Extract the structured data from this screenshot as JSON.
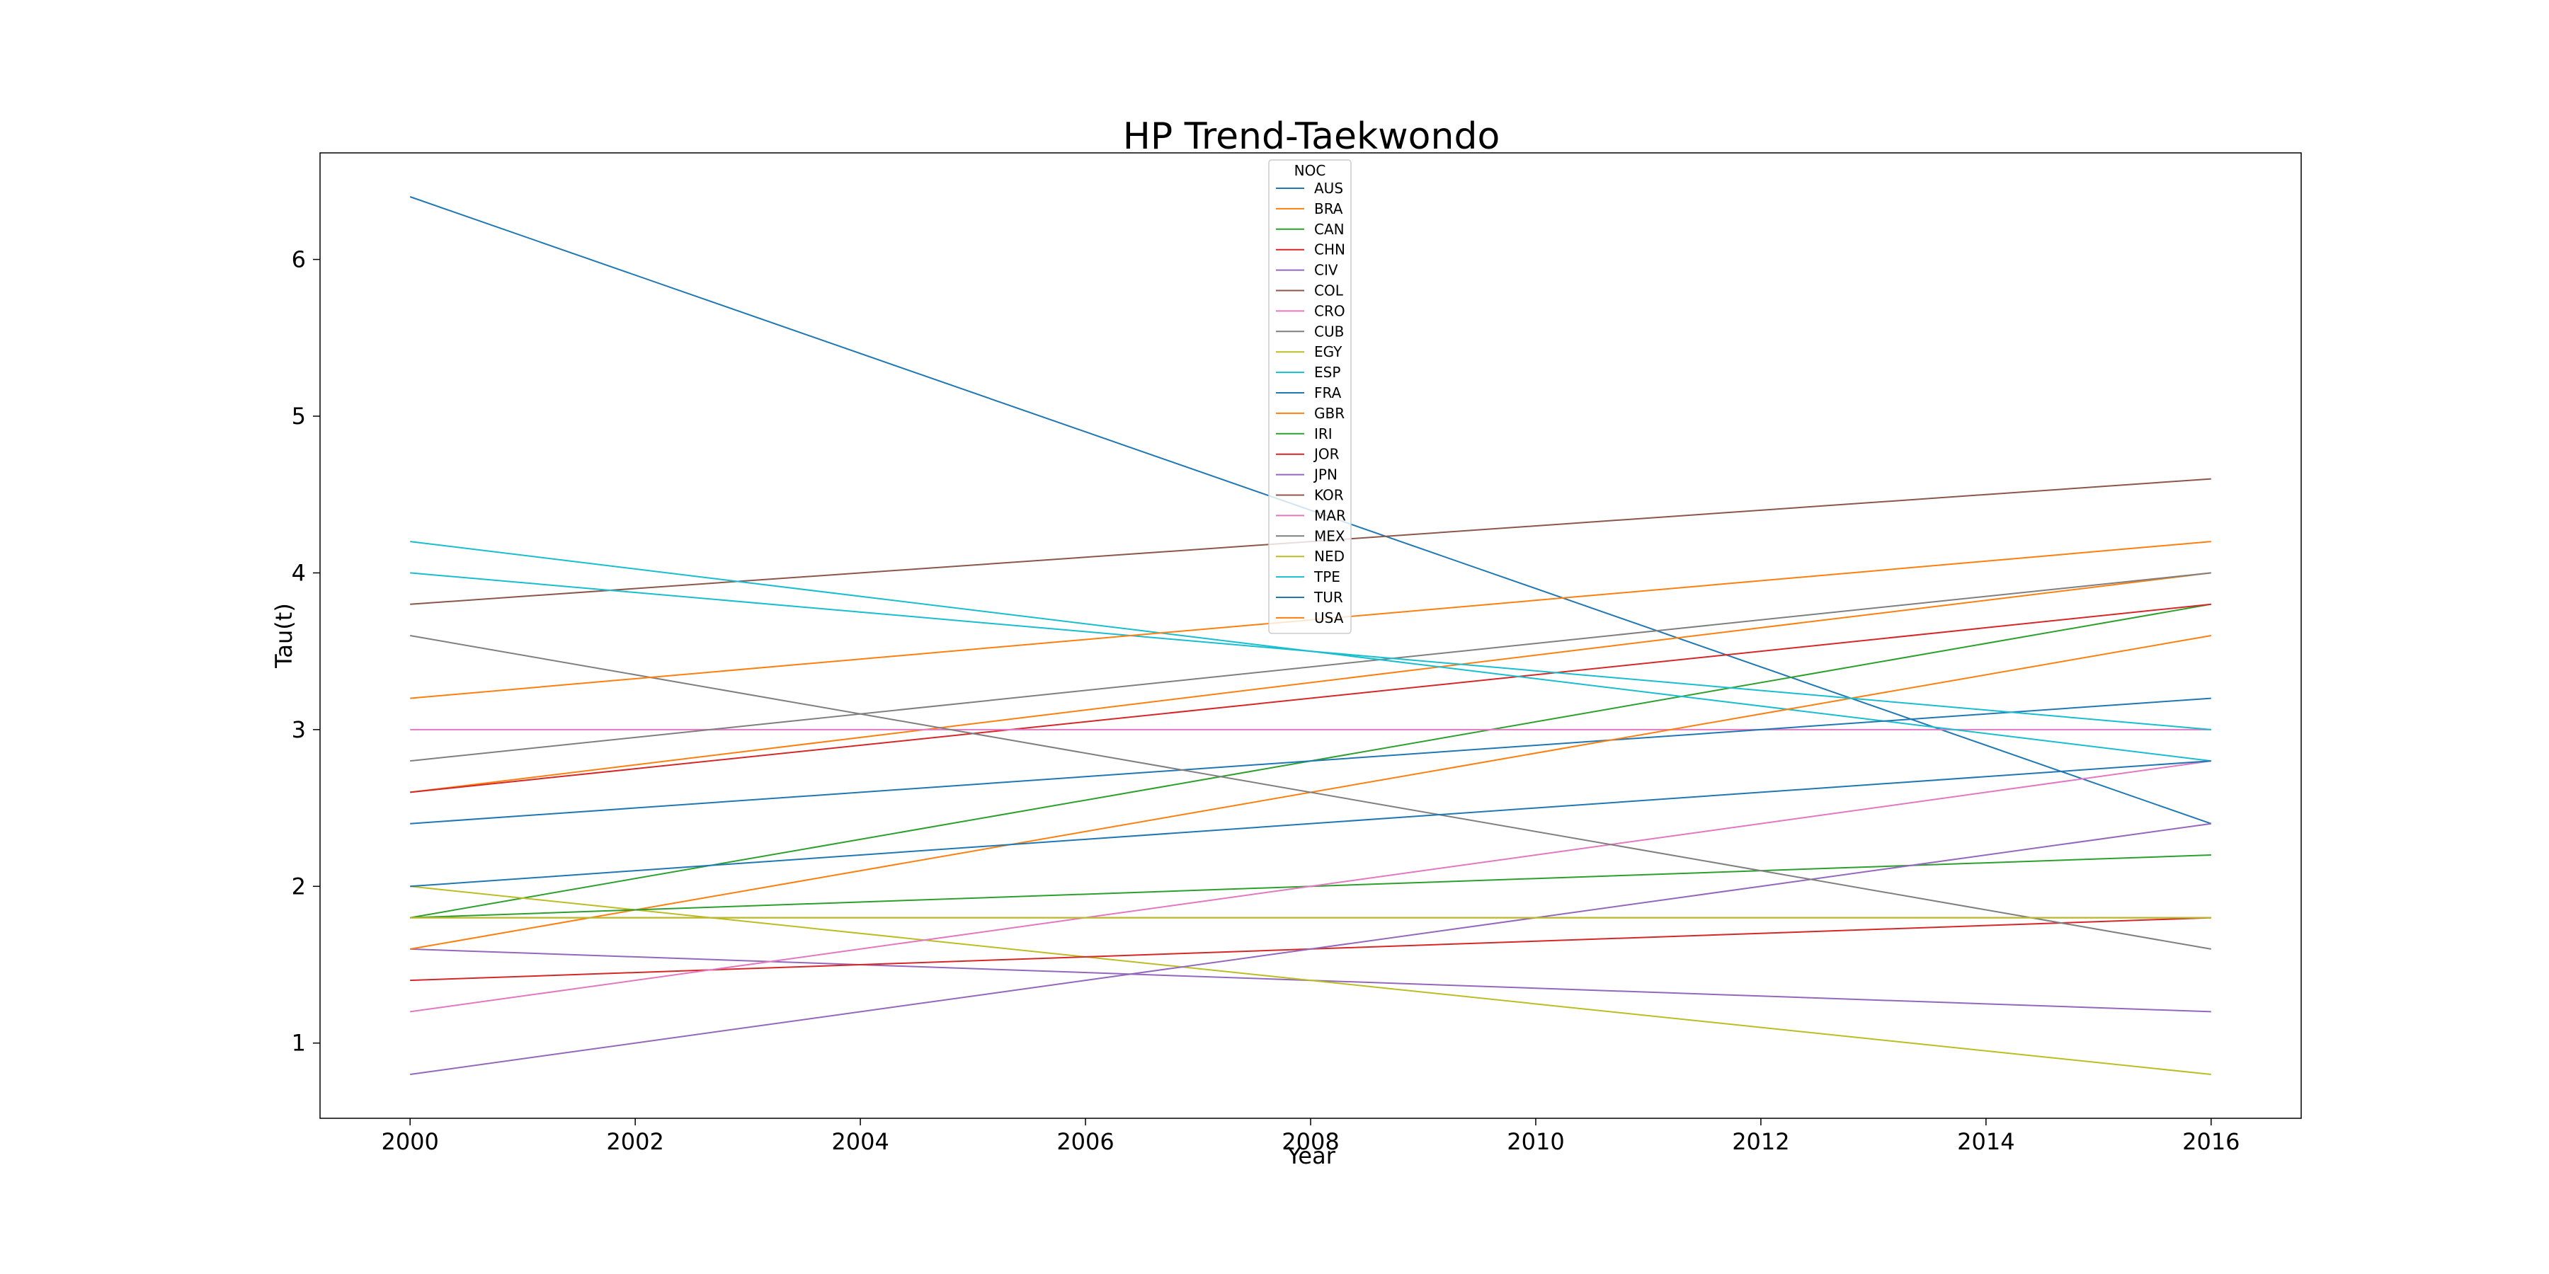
{
  "chart_data": {
    "type": "line",
    "title": "HP Trend-Taekwondo",
    "xlabel": "Year",
    "ylabel": "Tau(t)",
    "xlim": [
      1999.2,
      2016.8
    ],
    "ylim": [
      0.52,
      6.68
    ],
    "xticks": [
      2000,
      2002,
      2004,
      2006,
      2008,
      2010,
      2012,
      2014,
      2016
    ],
    "yticks": [
      1,
      2,
      3,
      4,
      5,
      6
    ],
    "grid": false,
    "legend": {
      "title": "NOC",
      "placement": "top-center"
    },
    "x": [
      2000,
      2016
    ],
    "series": [
      {
        "name": "AUS",
        "color": "#1f77b4",
        "values": [
          6.4,
          2.4
        ]
      },
      {
        "name": "BRA",
        "color": "#ff7f0e",
        "values": [
          2.6,
          4.0
        ]
      },
      {
        "name": "CAN",
        "color": "#2ca02c",
        "values": [
          1.8,
          3.8
        ]
      },
      {
        "name": "CHN",
        "color": "#d62728",
        "values": [
          2.6,
          3.8
        ]
      },
      {
        "name": "CIV",
        "color": "#9467bd",
        "values": [
          1.6,
          1.2
        ]
      },
      {
        "name": "COL",
        "color": "#8c564b",
        "values": [
          3.8,
          4.6
        ]
      },
      {
        "name": "CRO",
        "color": "#e377c2",
        "values": [
          3.0,
          3.0
        ]
      },
      {
        "name": "CUB",
        "color": "#7f7f7f",
        "values": [
          2.8,
          4.0
        ]
      },
      {
        "name": "EGY",
        "color": "#bcbd22",
        "values": [
          2.0,
          0.8
        ]
      },
      {
        "name": "ESP",
        "color": "#17becf",
        "values": [
          4.2,
          2.8
        ]
      },
      {
        "name": "FRA",
        "color": "#1f77b4",
        "values": [
          2.4,
          3.2
        ]
      },
      {
        "name": "GBR",
        "color": "#ff7f0e",
        "values": [
          1.6,
          3.6
        ]
      },
      {
        "name": "IRI",
        "color": "#2ca02c",
        "values": [
          1.8,
          2.2
        ]
      },
      {
        "name": "JOR",
        "color": "#d62728",
        "values": [
          1.4,
          1.8
        ]
      },
      {
        "name": "JPN",
        "color": "#9467bd",
        "values": [
          0.8,
          2.4
        ]
      },
      {
        "name": "KOR",
        "color": "#8c564b",
        "values": [
          1.8,
          1.8
        ]
      },
      {
        "name": "MAR",
        "color": "#e377c2",
        "values": [
          1.2,
          2.8
        ]
      },
      {
        "name": "MEX",
        "color": "#7f7f7f",
        "values": [
          3.6,
          1.6
        ]
      },
      {
        "name": "NED",
        "color": "#bcbd22",
        "values": [
          1.8,
          1.8
        ]
      },
      {
        "name": "TPE",
        "color": "#17becf",
        "values": [
          4.0,
          3.0
        ]
      },
      {
        "name": "TUR",
        "color": "#1f77b4",
        "values": [
          2.0,
          2.8
        ]
      },
      {
        "name": "USA",
        "color": "#ff7f0e",
        "values": [
          3.2,
          4.2
        ]
      }
    ]
  }
}
